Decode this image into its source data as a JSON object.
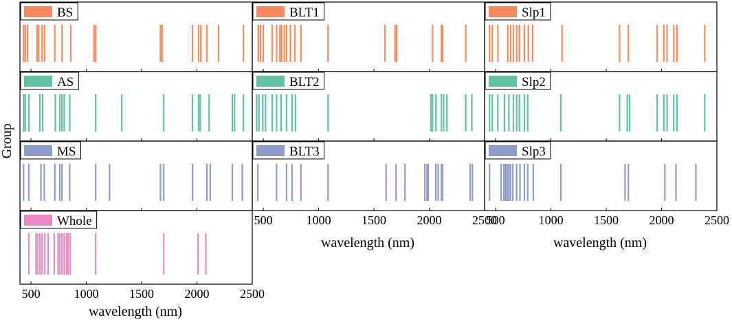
{
  "figure": {
    "ylabel": "Group",
    "xlabel": "wavelength (nm)"
  },
  "chart_data": {
    "type": "event-lines",
    "xlim": [
      400,
      2500
    ],
    "xticks": [
      500,
      1000,
      1500,
      2000,
      2500
    ],
    "xlabel": "wavelength (nm)",
    "ylabel": "Group",
    "panels": [
      {
        "id": "bs",
        "label": "BS",
        "color": "#F98B5F",
        "col": 0,
        "row": 0,
        "values": [
          433,
          448,
          468,
          555,
          570,
          600,
          622,
          715,
          780,
          860,
          1070,
          1085,
          1670,
          1685,
          1960,
          2015,
          2035,
          2090,
          2195,
          2420
        ]
      },
      {
        "id": "blt1",
        "label": "BLT1",
        "color": "#F98B5F",
        "col": 1,
        "row": 0,
        "values": [
          455,
          475,
          500,
          580,
          620,
          650,
          665,
          690,
          710,
          745,
          785,
          840,
          1085,
          1600,
          1690,
          1705,
          2030,
          2110,
          2120,
          2330
        ]
      },
      {
        "id": "slp1",
        "label": "Slp1",
        "color": "#F98B5F",
        "col": 2,
        "row": 0,
        "values": [
          445,
          470,
          520,
          610,
          635,
          660,
          690,
          715,
          760,
          795,
          835,
          1100,
          1620,
          1700,
          1960,
          2020,
          2050,
          2110,
          2140,
          2390
        ]
      },
      {
        "id": "as",
        "label": "AS",
        "color": "#5FC3A0",
        "col": 0,
        "row": 1,
        "values": [
          433,
          448,
          480,
          580,
          605,
          720,
          760,
          780,
          800,
          850,
          1085,
          1320,
          1700,
          1960,
          2015,
          2030,
          2110,
          2320,
          2340,
          2420
        ]
      },
      {
        "id": "blt2",
        "label": "BLT2",
        "color": "#5FC3A0",
        "col": 1,
        "row": 1,
        "values": [
          440,
          460,
          495,
          520,
          580,
          620,
          660,
          710,
          760,
          790,
          1085,
          2015,
          2030,
          2060,
          2110,
          2130,
          2160,
          2330,
          2385
        ]
      },
      {
        "id": "slp2",
        "label": "Slp2",
        "color": "#5FC3A0",
        "col": 2,
        "row": 1,
        "values": [
          445,
          470,
          520,
          580,
          620,
          660,
          690,
          715,
          760,
          790,
          1090,
          1620,
          1690,
          1710,
          1960,
          2020,
          2050,
          2110,
          2140,
          2390
        ]
      },
      {
        "id": "ms",
        "label": "MS",
        "color": "#8E9CCA",
        "col": 0,
        "row": 2,
        "values": [
          433,
          480,
          590,
          620,
          715,
          760,
          780,
          850,
          1085,
          1210,
          1670,
          1700,
          1960,
          2090,
          2120,
          2320,
          2410
        ]
      },
      {
        "id": "blt3",
        "label": "BLT3",
        "color": "#8E9CCA",
        "col": 1,
        "row": 2,
        "values": [
          450,
          620,
          710,
          760,
          840,
          1085,
          1610,
          1700,
          1780,
          1960,
          1980,
          1990,
          2060,
          2080,
          2110,
          2120,
          2370,
          2390
        ]
      },
      {
        "id": "slp3",
        "label": "Slp3",
        "color": "#8E9CCA",
        "col": 2,
        "row": 2,
        "values": [
          445,
          550,
          575,
          590,
          605,
          620,
          635,
          655,
          690,
          720,
          760,
          790,
          840,
          1090,
          1670,
          1700,
          2030,
          2130,
          2310
        ]
      },
      {
        "id": "whole",
        "label": "Whole",
        "color": "#E88BC4",
        "col": 0,
        "row": 3,
        "values": [
          480,
          545,
          560,
          580,
          600,
          625,
          655,
          710,
          745,
          760,
          780,
          800,
          820,
          835,
          855,
          1085,
          1700,
          2010,
          2080
        ]
      }
    ]
  }
}
